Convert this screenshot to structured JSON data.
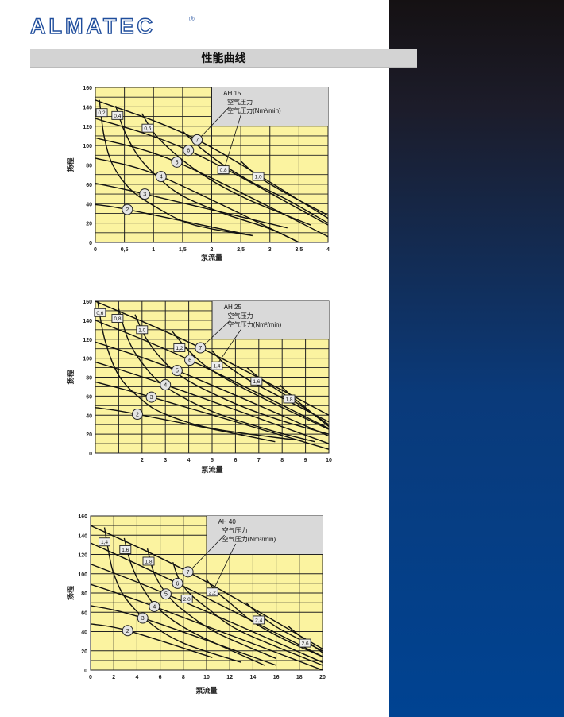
{
  "brand": {
    "logo_text": "ALMATEC",
    "registered": "®",
    "color": "#1f4d9c"
  },
  "header": {
    "title": "性能曲线"
  },
  "colors": {
    "plot_bg": "#fbf3a0",
    "legend_bg": "#d9d9d9",
    "sidebar_top": "#151113",
    "sidebar_bottom": "#004392"
  },
  "chart_data": [
    {
      "type": "line",
      "title": "AH 15",
      "legend_line1": "空气压力",
      "legend_line2": "空气压力(Nm³/min)",
      "xlabel": "泵流量",
      "ylabel": "扬程",
      "xlim": [
        0,
        4
      ],
      "ylim": [
        0,
        160
      ],
      "grid": true,
      "xticks": [
        "0",
        "0,5",
        "1",
        "1,5",
        "2",
        "2,5",
        "3",
        "3,5",
        "4"
      ],
      "xtick_values": [
        0,
        0.5,
        1,
        1.5,
        2,
        2.5,
        3,
        3.5,
        4
      ],
      "yticks": [
        0,
        20,
        40,
        60,
        80,
        100,
        120,
        140,
        160
      ],
      "legend_region": {
        "x": [
          2,
          4
        ],
        "y": [
          120,
          160
        ]
      },
      "pressure_series": [
        {
          "name": "7",
          "points": [
            [
              0,
              147
            ],
            [
              1.75,
              106
            ],
            [
              4,
              25
            ]
          ],
          "label_at": [
            1.75,
            106
          ]
        },
        {
          "name": "6",
          "points": [
            [
              0,
              128
            ],
            [
              1.6,
              95
            ],
            [
              4,
              18
            ]
          ],
          "label_at": [
            1.6,
            95
          ]
        },
        {
          "name": "5",
          "points": [
            [
              0,
              108
            ],
            [
              1.4,
              83
            ],
            [
              4,
              6
            ]
          ],
          "label_at": [
            1.4,
            83
          ]
        },
        {
          "name": "4",
          "points": [
            [
              0,
              87
            ],
            [
              1.13,
              68
            ],
            [
              3.5,
              0
            ]
          ],
          "label_at": [
            1.13,
            68
          ]
        },
        {
          "name": "3",
          "points": [
            [
              0,
              61
            ],
            [
              0.85,
              50
            ],
            [
              3.3,
              15
            ]
          ],
          "label_at": [
            0.85,
            50
          ]
        },
        {
          "name": "2",
          "points": [
            [
              0,
              39
            ],
            [
              0.55,
              34
            ],
            [
              2.7,
              7
            ]
          ],
          "label_at": [
            0.55,
            34
          ]
        }
      ],
      "air_series": [
        {
          "name": "0,2",
          "points": [
            [
              0.07,
              147
            ],
            [
              0.15,
              110
            ],
            [
              0.3,
              80
            ],
            [
              0.6,
              55
            ],
            [
              1,
              38
            ],
            [
              1.5,
              22
            ],
            [
              2,
              14
            ],
            [
              2.7,
              7
            ]
          ],
          "label_at": [
            0.11,
            134
          ]
        },
        {
          "name": "0,4",
          "points": [
            [
              0.35,
              141
            ],
            [
              0.5,
              115
            ],
            [
              0.75,
              88
            ],
            [
              1.1,
              66
            ],
            [
              1.5,
              48
            ],
            [
              2.2,
              30
            ],
            [
              3,
              14
            ],
            [
              3.5,
              0
            ]
          ],
          "label_at": [
            0.38,
            131
          ]
        },
        {
          "name": "0,6",
          "points": [
            [
              0.8,
              133
            ],
            [
              1.05,
              110
            ],
            [
              1.5,
              85
            ],
            [
              2,
              64
            ],
            [
              2.6,
              45
            ],
            [
              3.2,
              30
            ],
            [
              3.7,
              18
            ]
          ],
          "label_at": [
            0.9,
            118
          ]
        },
        {
          "name": "0,8",
          "points": [
            [
              1.5,
              115
            ],
            [
              1.8,
              98
            ],
            [
              2.2,
              80
            ],
            [
              2.7,
              62
            ],
            [
              3.3,
              44
            ],
            [
              4,
              20
            ]
          ],
          "label_at": [
            2.2,
            75
          ]
        },
        {
          "name": "1,0",
          "points": [
            [
              2.5,
              84
            ],
            [
              2.8,
              68
            ],
            [
              3.3,
              50
            ],
            [
              4,
              28
            ]
          ],
          "label_at": [
            2.8,
            68
          ]
        }
      ],
      "callout_air": "0,8"
    },
    {
      "type": "line",
      "title": "AH 25",
      "legend_line1": "空气压力",
      "legend_line2": "空气压力(Nm³/min)",
      "xlabel": "泵流量",
      "ylabel": "扬程",
      "xlim": [
        0,
        10
      ],
      "ylim": [
        0,
        160
      ],
      "grid": true,
      "xticks": [
        "2",
        "3",
        "4",
        "5",
        "6",
        "7",
        "8",
        "9",
        "10"
      ],
      "xtick_values": [
        2,
        3,
        4,
        5,
        6,
        7,
        8,
        9,
        10
      ],
      "yticks": [
        0,
        20,
        40,
        60,
        80,
        100,
        120,
        140,
        160
      ],
      "legend_region": {
        "x": [
          5,
          10
        ],
        "y": [
          120,
          160
        ]
      },
      "pressure_series": [
        {
          "name": "7",
          "points": [
            [
              0,
              160
            ],
            [
              4.5,
              111
            ],
            [
              10,
              40
            ]
          ],
          "label_at": [
            4.5,
            111
          ]
        },
        {
          "name": "6",
          "points": [
            [
              0,
              140
            ],
            [
              4.05,
              98
            ],
            [
              10,
              26
            ]
          ],
          "label_at": [
            4.05,
            98
          ]
        },
        {
          "name": "5",
          "points": [
            [
              0,
              117
            ],
            [
              3.5,
              87
            ],
            [
              10,
              18
            ]
          ],
          "label_at": [
            3.5,
            87
          ]
        },
        {
          "name": "4",
          "points": [
            [
              0,
              96
            ],
            [
              3,
              72
            ],
            [
              10,
              10
            ]
          ],
          "label_at": [
            3,
            72
          ]
        },
        {
          "name": "3",
          "points": [
            [
              0,
              75
            ],
            [
              2.4,
              59
            ],
            [
              10,
              4
            ]
          ],
          "label_at": [
            2.4,
            59
          ]
        },
        {
          "name": "2",
          "points": [
            [
              0,
              48
            ],
            [
              1.8,
              41
            ],
            [
              7.7,
              12
            ]
          ],
          "label_at": [
            1.8,
            41
          ]
        }
      ],
      "air_series": [
        {
          "name": "0,6",
          "points": [
            [
              0.1,
              160
            ],
            [
              0.4,
              120
            ],
            [
              1,
              82
            ],
            [
              2,
              56
            ],
            [
              3,
              41
            ],
            [
              5,
              26
            ],
            [
              8.5,
              14
            ]
          ],
          "label_at": [
            0.2,
            148
          ]
        },
        {
          "name": "0,8",
          "points": [
            [
              1,
              152
            ],
            [
              1.4,
              120
            ],
            [
              2,
              95
            ],
            [
              3,
              70
            ],
            [
              5,
              44
            ],
            [
              7.5,
              24
            ],
            [
              9.4,
              12
            ]
          ],
          "label_at": [
            0.95,
            142
          ]
        },
        {
          "name": "1,0",
          "points": [
            [
              1.7,
              146
            ],
            [
              2.2,
              120
            ],
            [
              3,
              95
            ],
            [
              4,
              76
            ],
            [
              6,
              52
            ],
            [
              8,
              34
            ],
            [
              10,
              20
            ]
          ],
          "label_at": [
            2,
            130
          ]
        },
        {
          "name": "1,2",
          "points": [
            [
              3.3,
              128
            ],
            [
              4,
              108
            ],
            [
              5,
              87
            ],
            [
              7,
              60
            ],
            [
              10,
              25
            ]
          ],
          "label_at": [
            3.6,
            111
          ]
        },
        {
          "name": "1,4",
          "points": [
            [
              5,
              108
            ],
            [
              5.5,
              95
            ],
            [
              6.5,
              78
            ],
            [
              8,
              58
            ],
            [
              10,
              33
            ]
          ],
          "label_at": [
            5.2,
            92
          ]
        },
        {
          "name": "1,6",
          "points": [
            [
              6.5,
              90
            ],
            [
              7.1,
              78
            ],
            [
              8.2,
              60
            ],
            [
              10,
              30
            ]
          ],
          "label_at": [
            6.9,
            76
          ]
        },
        {
          "name": "1,8",
          "points": [
            [
              7.9,
              72
            ],
            [
              8.5,
              58
            ],
            [
              10,
              28
            ]
          ],
          "label_at": [
            8.3,
            57
          ]
        }
      ],
      "callout_air": "1,4"
    },
    {
      "type": "line",
      "title": "AH 40",
      "legend_line1": "空气压力",
      "legend_line2": "空气压力(Nm³/min)",
      "xlabel": "泵流量",
      "ylabel": "扬程",
      "xlim": [
        0,
        20
      ],
      "ylim": [
        0,
        160
      ],
      "grid": true,
      "xticks": [
        "0",
        "2",
        "4",
        "6",
        "8",
        "10",
        "12",
        "14",
        "16",
        "18",
        "20"
      ],
      "xtick_values": [
        0,
        2,
        4,
        6,
        8,
        10,
        12,
        14,
        16,
        18,
        20
      ],
      "yticks": [
        0,
        20,
        40,
        60,
        80,
        100,
        120,
        140,
        160
      ],
      "legend_region": {
        "x": [
          10,
          20
        ],
        "y": [
          120,
          160
        ]
      },
      "pressure_series": [
        {
          "name": "7",
          "points": [
            [
              0,
              150
            ],
            [
              8.4,
              102
            ],
            [
              20,
              22
            ]
          ],
          "label_at": [
            8.4,
            102
          ]
        },
        {
          "name": "6",
          "points": [
            [
              0,
              132
            ],
            [
              7.5,
              90
            ],
            [
              20,
              14
            ]
          ],
          "label_at": [
            7.5,
            90
          ]
        },
        {
          "name": "5",
          "points": [
            [
              0,
              110
            ],
            [
              6.5,
              79
            ],
            [
              20,
              8
            ]
          ],
          "label_at": [
            6.5,
            79
          ]
        },
        {
          "name": "4",
          "points": [
            [
              0,
              89
            ],
            [
              5.5,
              66
            ],
            [
              20,
              0
            ]
          ],
          "label_at": [
            5.5,
            66
          ]
        },
        {
          "name": "3",
          "points": [
            [
              0,
              67
            ],
            [
              4.5,
              54
            ],
            [
              16,
              5
            ]
          ],
          "label_at": [
            4.5,
            54
          ]
        },
        {
          "name": "2",
          "points": [
            [
              0,
              48
            ],
            [
              3.2,
              41
            ],
            [
              10.5,
              13
            ]
          ],
          "label_at": [
            3.2,
            41
          ]
        }
      ],
      "air_series": [
        {
          "name": "1,4",
          "points": [
            [
              1.2,
              148
            ],
            [
              1.6,
              120
            ],
            [
              2,
              100
            ],
            [
              3,
              75
            ],
            [
              5,
              50
            ],
            [
              8,
              28
            ],
            [
              13,
              8
            ]
          ],
          "label_at": [
            1.2,
            133
          ]
        },
        {
          "name": "1,6",
          "points": [
            [
              2.9,
              137
            ],
            [
              3.5,
              110
            ],
            [
              4.5,
              85
            ],
            [
              6,
              62
            ],
            [
              9,
              38
            ],
            [
              15,
              5
            ]
          ],
          "label_at": [
            3,
            125
          ]
        },
        {
          "name": "1,8",
          "points": [
            [
              4.9,
              126
            ],
            [
              5.5,
              100
            ],
            [
              6.5,
              80
            ],
            [
              8,
              62
            ],
            [
              11,
              38
            ],
            [
              16,
              12
            ]
          ],
          "label_at": [
            5,
            113
          ]
        },
        {
          "name": "2,0",
          "points": [
            [
              7.1,
              112
            ],
            [
              7.6,
              95
            ],
            [
              8.5,
              80
            ],
            [
              10,
              65
            ],
            [
              13,
              40
            ],
            [
              20,
              5
            ]
          ],
          "label_at": [
            8.3,
            74
          ]
        },
        {
          "name": "2,2",
          "points": [
            [
              10,
              94
            ],
            [
              10.8,
              82
            ],
            [
              12,
              70
            ],
            [
              14,
              50
            ],
            [
              17,
              30
            ],
            [
              20,
              14
            ]
          ],
          "label_at": [
            10.5,
            81
          ]
        },
        {
          "name": "2,4",
          "points": [
            [
              13.4,
              70
            ],
            [
              14.5,
              58
            ],
            [
              16,
              45
            ],
            [
              18,
              32
            ],
            [
              20,
              20
            ]
          ],
          "label_at": [
            14.5,
            52
          ]
        },
        {
          "name": "2,6",
          "points": [
            [
              17,
              46
            ],
            [
              18,
              36
            ],
            [
              20,
              18
            ]
          ],
          "label_at": [
            18.5,
            28
          ]
        }
      ],
      "callout_air": "2,2"
    }
  ]
}
